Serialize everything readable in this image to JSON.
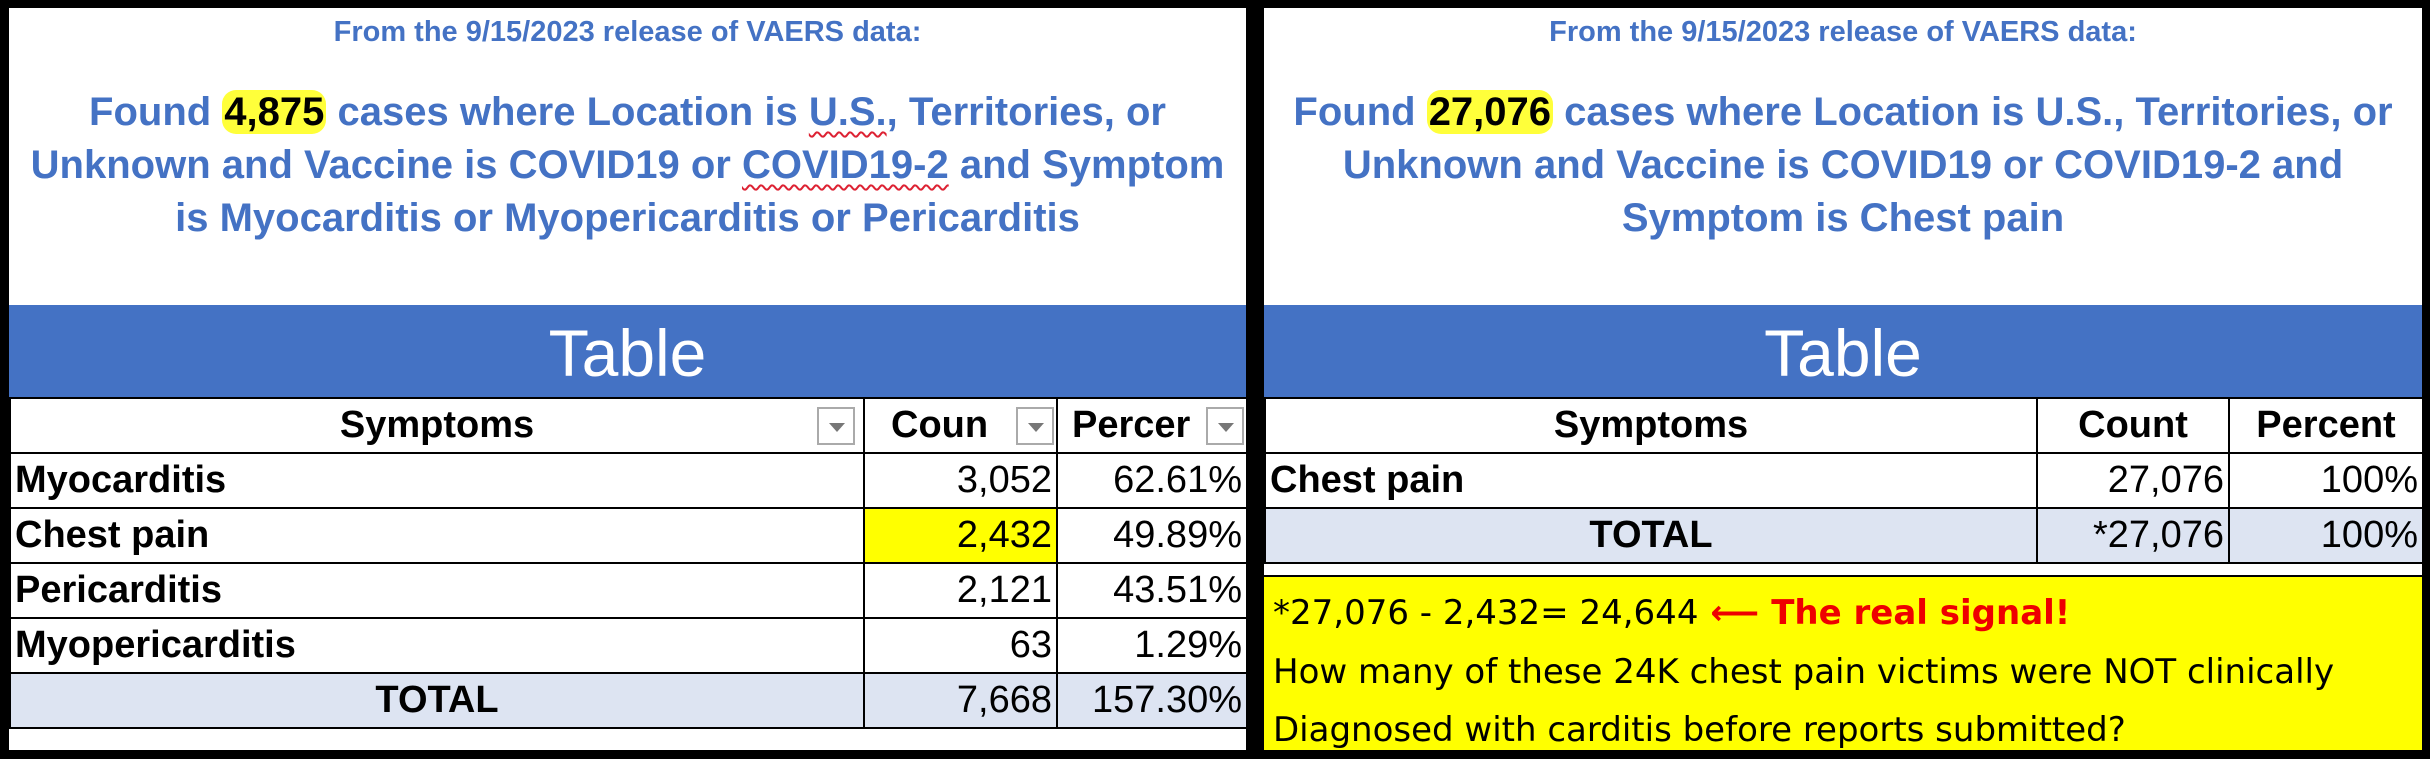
{
  "left": {
    "release": "From the 9/15/2023 release of VAERS data:",
    "found_prefix": "Found ",
    "found_count": "4,875",
    "found_mid1": " cases where Location is ",
    "found_us": "U.S.",
    "found_mid2": ", Territories, or Unknown and Vaccine is COVID19 or ",
    "found_covid2": "COVID19-2",
    "found_mid3": " and Symptom is Myocarditis or Myopericarditis or Pericarditis",
    "table_title": "Table",
    "headers": [
      "Symptoms",
      "Coun",
      "Percer"
    ],
    "rows": [
      {
        "symptom": "Myocarditis",
        "count": "3,052",
        "percent": "62.61%"
      },
      {
        "symptom": "Chest pain",
        "count": "2,432",
        "percent": "49.89%"
      },
      {
        "symptom": "Pericarditis",
        "count": "2,121",
        "percent": "43.51%"
      },
      {
        "symptom": "Myopericarditis",
        "count": "63",
        "percent": "1.29%"
      }
    ],
    "total": {
      "label": "TOTAL",
      "count": "7,668",
      "percent": "157.30%"
    }
  },
  "right": {
    "release": "From the 9/15/2023 release of VAERS data:",
    "found_prefix": "Found ",
    "found_count": "27,076",
    "found_rest": " cases where Location is U.S., Territories, or Unknown and Vaccine is COVID19 or COVID19-2 and Symptom is Chest pain",
    "table_title": "Table",
    "headers": [
      "Symptoms",
      "Count",
      "Percent"
    ],
    "rows": [
      {
        "symptom": "Chest pain",
        "count": "27,076",
        "percent": "100%"
      }
    ],
    "total": {
      "label": "TOTAL",
      "count": "*27,076",
      "percent": "100%"
    },
    "note": {
      "formula": "*27,076 - 2,432= 24,644",
      "arrow": "⟵",
      "signal": "The real signal!",
      "line2": "How many of these 24K chest pain victims were NOT clinically",
      "line3": "Diagnosed with carditis before reports submitted?"
    }
  },
  "colors": {
    "accent_blue": "#4472c4",
    "highlight_yellow": "#ffff00",
    "alert_red": "#e00000",
    "total_row": "#dde4f2"
  }
}
